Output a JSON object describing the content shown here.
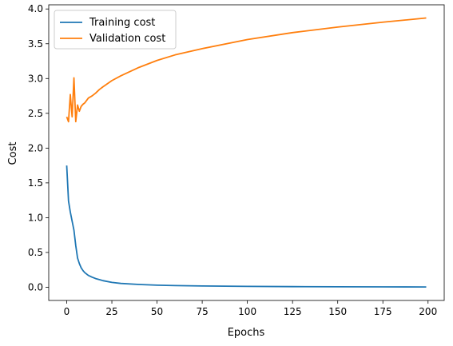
{
  "chart_data": {
    "type": "line",
    "title": "",
    "xlabel": "Epochs",
    "ylabel": "Cost",
    "xlim": [
      -9.95,
      208.95
    ],
    "ylim": [
      -0.19,
      4.06
    ],
    "xticks": [
      0,
      25,
      50,
      75,
      100,
      125,
      150,
      175,
      200
    ],
    "yticks": [
      0.0,
      0.5,
      1.0,
      1.5,
      2.0,
      2.5,
      3.0,
      3.5,
      4.0
    ],
    "xtick_labels": [
      "0",
      "25",
      "50",
      "75",
      "100",
      "125",
      "150",
      "175",
      "200"
    ],
    "ytick_labels": [
      "0.0",
      "0.5",
      "1.0",
      "1.5",
      "2.0",
      "2.5",
      "3.0",
      "3.5",
      "4.0"
    ],
    "grid": false,
    "legend_position": "top-left",
    "series": [
      {
        "name": "Training cost",
        "color": "#1f77b4",
        "x": [
          0,
          1,
          2,
          3,
          4,
          5,
          6,
          7,
          8,
          9,
          10,
          12,
          14,
          16,
          18,
          20,
          25,
          30,
          40,
          50,
          60,
          75,
          100,
          125,
          150,
          175,
          199
        ],
        "y": [
          1.75,
          1.24,
          1.08,
          0.95,
          0.82,
          0.6,
          0.42,
          0.34,
          0.28,
          0.24,
          0.21,
          0.17,
          0.145,
          0.125,
          0.11,
          0.095,
          0.07,
          0.055,
          0.04,
          0.03,
          0.024,
          0.018,
          0.012,
          0.009,
          0.007,
          0.005,
          0.004
        ]
      },
      {
        "name": "Validation cost",
        "color": "#ff7f0e",
        "x": [
          0,
          1,
          2,
          3,
          4,
          5,
          6,
          7,
          8,
          9,
          10,
          12,
          14,
          16,
          18,
          20,
          25,
          30,
          40,
          50,
          60,
          75,
          100,
          125,
          150,
          175,
          199
        ],
        "y": [
          2.45,
          2.38,
          2.77,
          2.45,
          3.01,
          2.38,
          2.62,
          2.53,
          2.6,
          2.63,
          2.65,
          2.72,
          2.75,
          2.79,
          2.84,
          2.88,
          2.97,
          3.04,
          3.16,
          3.26,
          3.34,
          3.43,
          3.56,
          3.66,
          3.74,
          3.81,
          3.87
        ]
      }
    ]
  }
}
